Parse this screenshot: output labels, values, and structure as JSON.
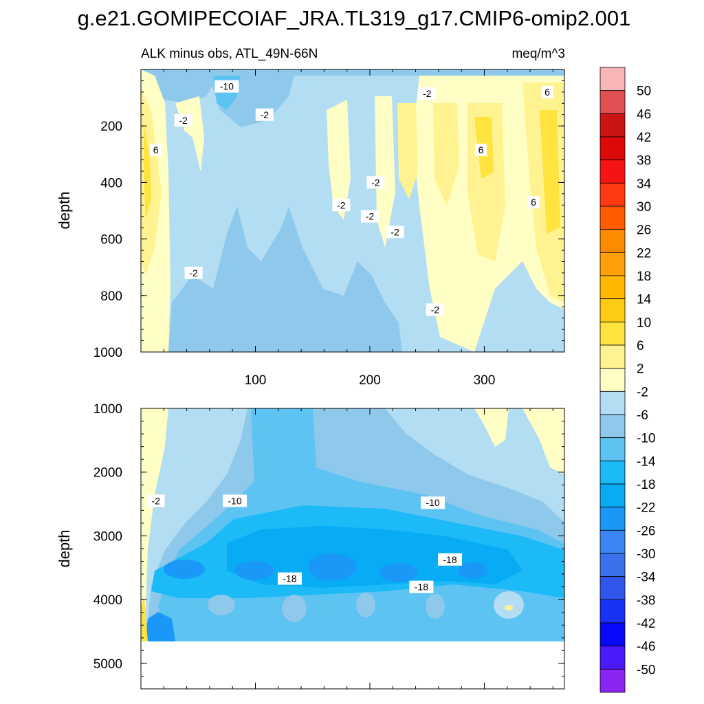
{
  "figure_title": "g.e21.GOMIPECOIAF_JRA.TL319_g17.CMIP6-omip2.001",
  "chart_data": [
    {
      "type": "heatmap",
      "panel": "top",
      "title_left": "ALK minus obs, ATL_49N-66N",
      "title_right": "meq/m^3",
      "xlabel": "",
      "ylabel": "depth",
      "xlim": [
        0,
        370
      ],
      "ylim": [
        1000,
        0
      ],
      "xticks": [
        100,
        200,
        300
      ],
      "yticks": [
        200,
        400,
        600,
        800,
        1000
      ],
      "contour_labels": [
        {
          "x": 75,
          "y": 60,
          "label": "-10"
        },
        {
          "x": 37,
          "y": 180,
          "label": "-2"
        },
        {
          "x": 108,
          "y": 160,
          "label": "-2"
        },
        {
          "x": 250,
          "y": 85,
          "label": "-2"
        },
        {
          "x": 13,
          "y": 285,
          "label": "6"
        },
        {
          "x": 297,
          "y": 285,
          "label": "6"
        },
        {
          "x": 355,
          "y": 80,
          "label": "6"
        },
        {
          "x": 343,
          "y": 470,
          "label": "6"
        },
        {
          "x": 205,
          "y": 400,
          "label": "-2"
        },
        {
          "x": 175,
          "y": 480,
          "label": "-2"
        },
        {
          "x": 200,
          "y": 520,
          "label": "-2"
        },
        {
          "x": 222,
          "y": 575,
          "label": "-2"
        },
        {
          "x": 46,
          "y": 720,
          "label": "-2"
        },
        {
          "x": 257,
          "y": 850,
          "label": "-2"
        }
      ]
    },
    {
      "type": "heatmap",
      "panel": "bottom",
      "xlabel": "",
      "ylabel": "depth",
      "xlim": [
        0,
        370
      ],
      "ylim": [
        5400,
        1000
      ],
      "yticks": [
        1000,
        2000,
        3000,
        4000,
        5000
      ],
      "data_bottom_depth": 4620,
      "contour_labels": [
        {
          "x": 13,
          "y": 2450,
          "label": "-2"
        },
        {
          "x": 82,
          "y": 2450,
          "label": "-10"
        },
        {
          "x": 255,
          "y": 2480,
          "label": "-10"
        },
        {
          "x": 270,
          "y": 3370,
          "label": "-18"
        },
        {
          "x": 130,
          "y": 3670,
          "label": "-18"
        },
        {
          "x": 245,
          "y": 3800,
          "label": "-18"
        }
      ]
    }
  ],
  "colorbar": {
    "labels": [
      "50",
      "46",
      "42",
      "38",
      "34",
      "30",
      "26",
      "22",
      "18",
      "14",
      "10",
      "6",
      "2",
      "-2",
      "-6",
      "-10",
      "-14",
      "-18",
      "-22",
      "-26",
      "-30",
      "-34",
      "-38",
      "-42",
      "-46",
      "-50"
    ],
    "colors": [
      "#f9b6b9",
      "#e15151",
      "#cb1414",
      "#de0909",
      "#f51414",
      "#ff3a12",
      "#ff5c00",
      "#ff8b00",
      "#fea108",
      "#ffb700",
      "#ffca14",
      "#ffe33f",
      "#fff391",
      "#fffec5",
      "#b3ddf3",
      "#8ec9ec",
      "#5dc3f2",
      "#1cbaf6",
      "#07acf5",
      "#1a98f8",
      "#3a86f3",
      "#3a71ec",
      "#3156ea",
      "#1833f6",
      "#0709fa",
      "#4b19fa",
      "#8a26f3"
    ]
  }
}
